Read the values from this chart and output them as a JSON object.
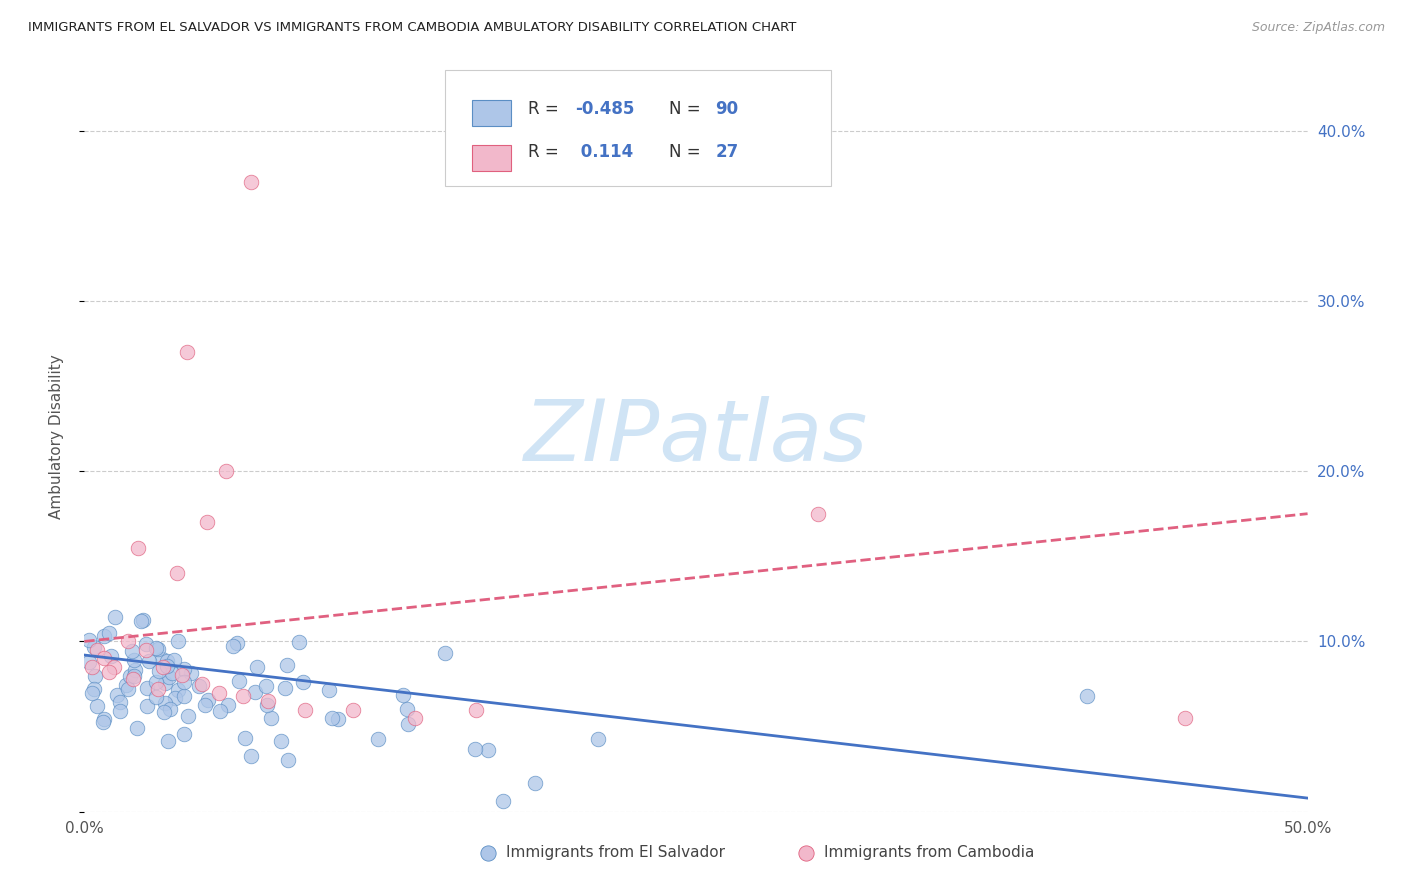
{
  "title": "IMMIGRANTS FROM EL SALVADOR VS IMMIGRANTS FROM CAMBODIA AMBULATORY DISABILITY CORRELATION CHART",
  "source": "Source: ZipAtlas.com",
  "ylabel": "Ambulatory Disability",
  "xlim": [
    0.0,
    0.5
  ],
  "ylim": [
    0.0,
    0.44
  ],
  "el_salvador_R": -0.485,
  "el_salvador_N": 90,
  "cambodia_R": 0.114,
  "cambodia_N": 27,
  "color_el_salvador_fill": "#aec6e8",
  "color_el_salvador_edge": "#5b8ec4",
  "color_cambodia_fill": "#f2b8cb",
  "color_cambodia_edge": "#e0607e",
  "color_line_el_salvador": "#4472c4",
  "color_line_cambodia": "#e06080",
  "color_grid": "#cccccc",
  "color_right_axis": "#4472c4",
  "watermark_color": "#d0e4f5",
  "watermark_text": "ZIPatlas",
  "es_line_x0": 0.0,
  "es_line_y0": 0.092,
  "es_line_x1": 0.5,
  "es_line_y1": 0.008,
  "cam_line_x0": 0.0,
  "cam_line_y0": 0.1,
  "cam_line_x1": 0.5,
  "cam_line_y1": 0.175
}
